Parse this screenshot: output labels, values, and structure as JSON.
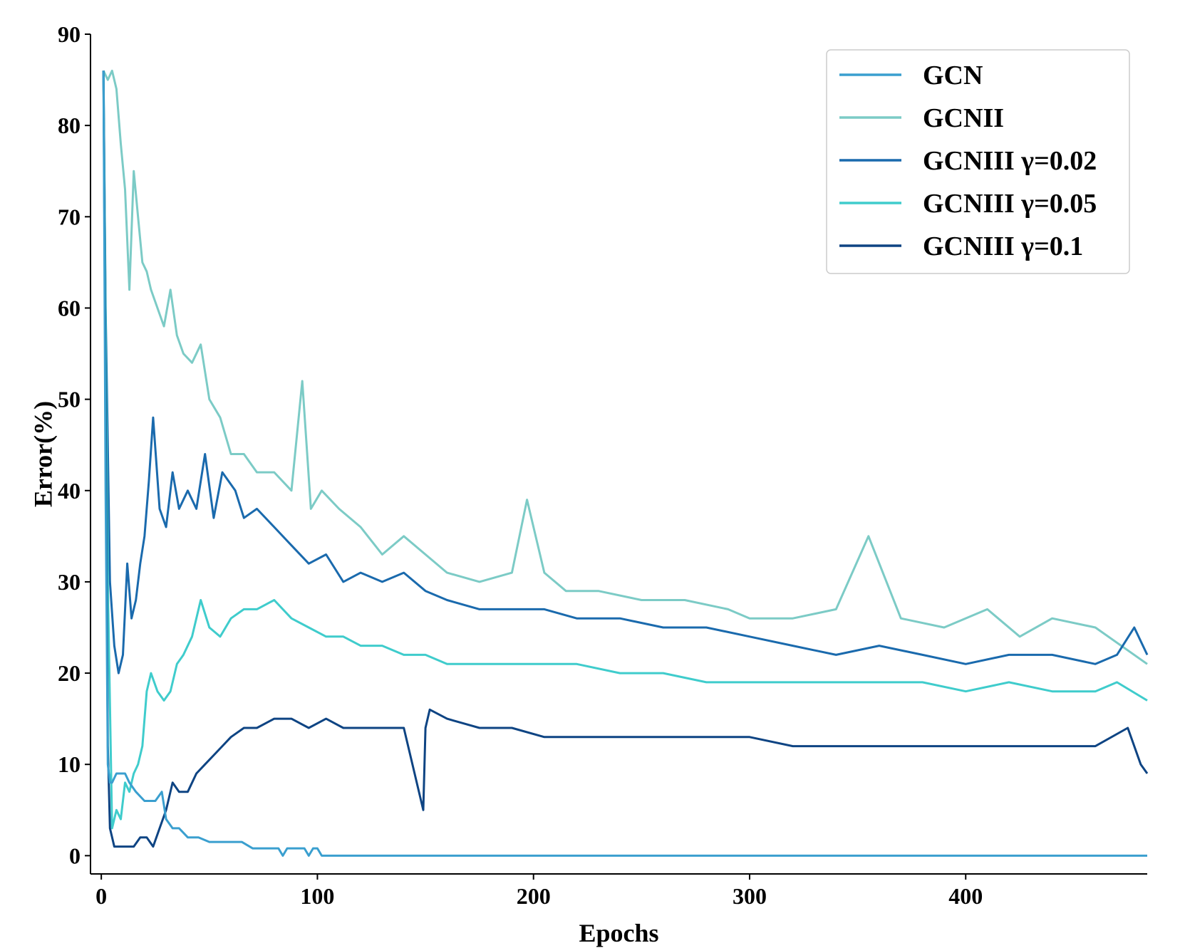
{
  "chart_data": {
    "type": "line",
    "title": "",
    "xlabel": "Epochs",
    "ylabel": "Error(%)",
    "xlim": [
      -5,
      484
    ],
    "ylim": [
      -2,
      90
    ],
    "xticks": [
      0,
      100,
      200,
      300,
      400
    ],
    "yticks": [
      0,
      10,
      20,
      30,
      40,
      50,
      60,
      70,
      80,
      90
    ],
    "grid": false,
    "legend_position": "top-right",
    "series": [
      {
        "name": "GCNII",
        "color": "#7ccbc6",
        "x": [
          1,
          3,
          5,
          7,
          9,
          11,
          13,
          15,
          17,
          19,
          21,
          23,
          26,
          29,
          32,
          35,
          38,
          42,
          46,
          50,
          55,
          60,
          66,
          72,
          80,
          88,
          93,
          97,
          102,
          110,
          120,
          130,
          140,
          150,
          160,
          175,
          190,
          197,
          205,
          215,
          230,
          250,
          270,
          290,
          300,
          320,
          340,
          355,
          370,
          390,
          410,
          425,
          440,
          460,
          484
        ],
        "y": [
          86,
          85,
          86,
          84,
          78,
          73,
          62,
          75,
          70,
          65,
          64,
          62,
          60,
          58,
          62,
          57,
          55,
          54,
          56,
          50,
          48,
          44,
          44,
          42,
          42,
          40,
          52,
          38,
          40,
          38,
          36,
          33,
          35,
          33,
          31,
          30,
          31,
          39,
          31,
          29,
          29,
          28,
          28,
          27,
          26,
          26,
          27,
          35,
          26,
          25,
          27,
          24,
          26,
          25,
          21
        ]
      },
      {
        "name": "GCNIII γ=0.02",
        "color": "#1a6aad",
        "x": [
          1,
          2,
          4,
          6,
          8,
          10,
          12,
          14,
          16,
          18,
          20,
          22,
          24,
          27,
          30,
          33,
          36,
          40,
          44,
          48,
          52,
          56,
          62,
          66,
          72,
          80,
          88,
          96,
          104,
          112,
          120,
          130,
          140,
          150,
          160,
          175,
          190,
          205,
          220,
          240,
          260,
          280,
          300,
          320,
          340,
          360,
          380,
          400,
          420,
          440,
          460,
          470,
          478,
          484
        ],
        "y": [
          86,
          60,
          30,
          23,
          20,
          22,
          32,
          26,
          28,
          32,
          35,
          41,
          48,
          38,
          36,
          42,
          38,
          40,
          38,
          44,
          37,
          42,
          40,
          37,
          38,
          36,
          34,
          32,
          33,
          30,
          31,
          30,
          31,
          29,
          28,
          27,
          27,
          27,
          26,
          26,
          25,
          25,
          24,
          23,
          22,
          23,
          22,
          21,
          22,
          22,
          21,
          22,
          25,
          22
        ]
      },
      {
        "name": "GCNIII γ=0.05",
        "color": "#3fcccc",
        "x": [
          1,
          3,
          5,
          7,
          9,
          11,
          13,
          15,
          17,
          19,
          21,
          23,
          26,
          29,
          32,
          35,
          38,
          42,
          46,
          50,
          55,
          60,
          66,
          72,
          80,
          88,
          96,
          104,
          112,
          120,
          130,
          140,
          150,
          160,
          175,
          190,
          205,
          220,
          240,
          260,
          280,
          300,
          320,
          340,
          360,
          380,
          400,
          420,
          440,
          460,
          470,
          484
        ],
        "y": [
          86,
          30,
          3,
          5,
          4,
          8,
          7,
          9,
          10,
          12,
          18,
          20,
          18,
          17,
          18,
          21,
          22,
          24,
          28,
          25,
          24,
          26,
          27,
          27,
          28,
          26,
          25,
          24,
          24,
          23,
          23,
          22,
          22,
          21,
          21,
          21,
          21,
          21,
          20,
          20,
          19,
          19,
          19,
          19,
          19,
          19,
          18,
          19,
          18,
          18,
          19,
          17
        ]
      },
      {
        "name": "GCNIII γ=0.1",
        "color": "#0e4483",
        "x": [
          1,
          2,
          3,
          4,
          6,
          8,
          10,
          12,
          15,
          18,
          21,
          24,
          27,
          30,
          33,
          36,
          40,
          44,
          48,
          52,
          56,
          60,
          66,
          72,
          80,
          88,
          96,
          104,
          112,
          120,
          130,
          140,
          149,
          150,
          152,
          160,
          175,
          190,
          205,
          220,
          240,
          260,
          280,
          300,
          320,
          340,
          360,
          380,
          400,
          420,
          440,
          460,
          475,
          481,
          484
        ],
        "y": [
          86,
          50,
          12,
          3,
          1,
          1,
          1,
          1,
          1,
          2,
          2,
          1,
          3,
          5,
          8,
          7,
          7,
          9,
          10,
          11,
          12,
          13,
          14,
          14,
          15,
          15,
          14,
          15,
          14,
          14,
          14,
          14,
          5,
          14,
          16,
          15,
          14,
          14,
          13,
          13,
          13,
          13,
          13,
          13,
          12,
          12,
          12,
          12,
          12,
          12,
          12,
          12,
          14,
          10,
          9
        ]
      },
      {
        "name": "GCN",
        "color": "#3a9fcf",
        "x": [
          1,
          2,
          3,
          4,
          5,
          7,
          9,
          11,
          13,
          16,
          20,
          25,
          28,
          30,
          33,
          36,
          40,
          45,
          50,
          55,
          60,
          65,
          70,
          75,
          82,
          84,
          86,
          90,
          94,
          96,
          98,
          100,
          102,
          105,
          120,
          200,
          300,
          400,
          484
        ],
        "y": [
          86,
          40,
          10,
          8,
          8,
          9,
          9,
          9,
          8,
          7,
          6,
          6,
          7,
          4,
          3,
          3,
          2,
          2,
          1.5,
          1.5,
          1.5,
          1.5,
          0.8,
          0.8,
          0.8,
          0,
          0.8,
          0.8,
          0.8,
          0,
          0.8,
          0.8,
          0,
          0,
          0,
          0,
          0,
          0,
          0
        ]
      }
    ],
    "legend_order": [
      "GCN",
      "GCNII",
      "GCNIII γ=0.02",
      "GCNIII γ=0.05",
      "GCNIII γ=0.1"
    ]
  }
}
